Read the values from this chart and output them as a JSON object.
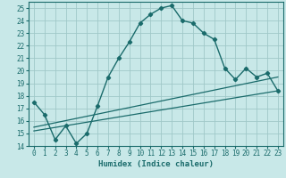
{
  "title": "",
  "xlabel": "Humidex (Indice chaleur)",
  "background_color": "#c8e8e8",
  "grid_color": "#a0c8c8",
  "line_color": "#1a6b6b",
  "xlim": [
    -0.5,
    23.5
  ],
  "ylim": [
    14,
    25.5
  ],
  "xticks": [
    0,
    1,
    2,
    3,
    4,
    5,
    6,
    7,
    8,
    9,
    10,
    11,
    12,
    13,
    14,
    15,
    16,
    17,
    18,
    19,
    20,
    21,
    22,
    23
  ],
  "yticks": [
    14,
    15,
    16,
    17,
    18,
    19,
    20,
    21,
    22,
    23,
    24,
    25
  ],
  "line1_x": [
    0,
    1,
    2,
    3,
    4,
    5,
    6,
    7,
    8,
    9,
    10,
    11,
    12,
    13,
    14,
    15,
    16,
    17,
    18,
    19,
    20,
    21,
    22,
    23
  ],
  "line1_y": [
    17.5,
    16.5,
    14.5,
    15.6,
    14.2,
    15.0,
    17.2,
    19.5,
    21.0,
    22.3,
    23.8,
    24.5,
    25.0,
    25.2,
    24.0,
    23.8,
    23.0,
    22.5,
    20.2,
    19.3,
    20.2,
    19.5,
    19.8,
    18.4
  ],
  "line2_x": [
    0,
    23
  ],
  "line2_y": [
    15.5,
    19.5
  ],
  "line3_x": [
    0,
    23
  ],
  "line3_y": [
    15.2,
    18.4
  ],
  "font_color": "#1a6b6b",
  "font_size_tick": 5.5,
  "font_size_label": 6.5
}
